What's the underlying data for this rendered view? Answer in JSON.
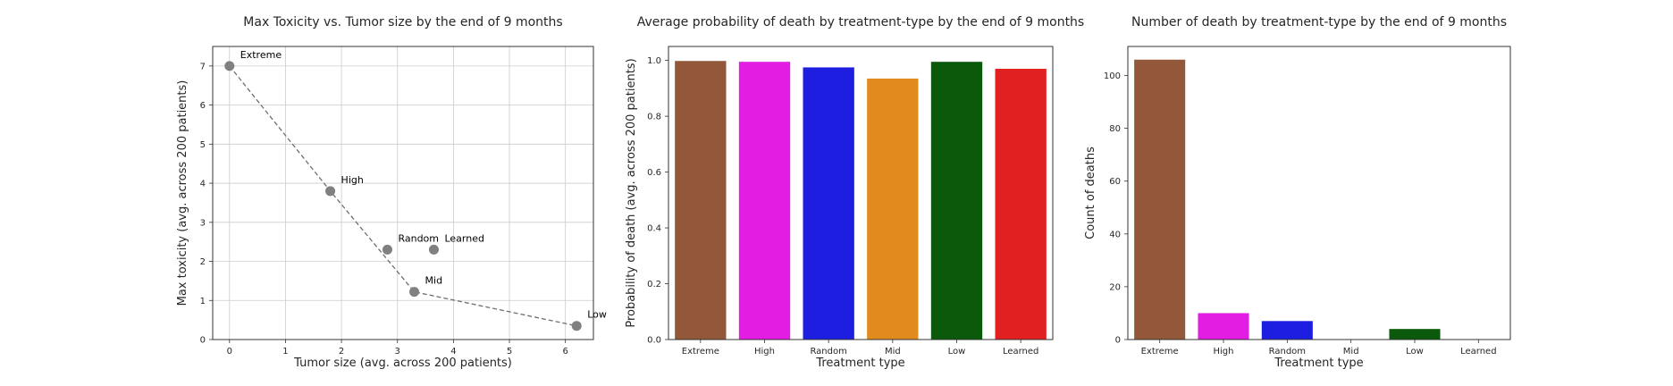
{
  "chart_data": [
    {
      "type": "scatter",
      "title": "Max Toxicity vs. Tumor size by the end of 9 months",
      "xlabel": "Tumor size (avg. across 200 patients)",
      "ylabel": "Max toxicity (avg. across 200 patients)",
      "xlim": [
        -0.3,
        6.5
      ],
      "ylim": [
        0,
        7.5
      ],
      "xticks": [
        "0",
        "1",
        "2",
        "3",
        "4",
        "5",
        "6"
      ],
      "yticks": [
        "0",
        "1",
        "2",
        "3",
        "4",
        "5",
        "6",
        "7"
      ],
      "grid": true,
      "point_color": "#808080",
      "line_style": "dashed",
      "points": [
        {
          "label": "Extreme",
          "x": 0.0,
          "y": 7.0
        },
        {
          "label": "High",
          "x": 1.8,
          "y": 3.8
        },
        {
          "label": "Random",
          "x": 2.82,
          "y": 2.3
        },
        {
          "label": "Learned",
          "x": 3.65,
          "y": 2.3
        },
        {
          "label": "Mid",
          "x": 3.3,
          "y": 1.22
        },
        {
          "label": "Low",
          "x": 6.2,
          "y": 0.35
        }
      ],
      "line_order": [
        "Extreme",
        "High",
        "Mid",
        "Low"
      ]
    },
    {
      "type": "bar",
      "title": "Average probability of death by treatment-type by the end of 9 months",
      "xlabel": "Treatment type",
      "ylabel": "Probability of death (avg. across 200 patients)",
      "ylim": [
        0,
        1.05
      ],
      "yticks": [
        "0.0",
        "0.2",
        "0.4",
        "0.6",
        "0.8",
        "1.0"
      ],
      "grid": false,
      "categories": [
        "Extreme",
        "High",
        "Random",
        "Mid",
        "Low",
        "Learned"
      ],
      "values": [
        0.998,
        0.995,
        0.975,
        0.935,
        0.995,
        0.97
      ],
      "colors": [
        "#93573a",
        "#e11ee1",
        "#1e1ee1",
        "#e18a1e",
        "#0b5a0b",
        "#e12020"
      ]
    },
    {
      "type": "bar",
      "title": "Number of death by treatment-type by the end of 9 months",
      "xlabel": "Treatment type",
      "ylabel": "Count of deaths",
      "ylim": [
        0,
        111
      ],
      "yticks": [
        "0",
        "20",
        "40",
        "60",
        "80",
        "100"
      ],
      "grid": false,
      "categories": [
        "Extreme",
        "High",
        "Random",
        "Mid",
        "Low",
        "Learned"
      ],
      "values": [
        106,
        10,
        7,
        0,
        4,
        0
      ],
      "colors": [
        "#93573a",
        "#e11ee1",
        "#1e1ee1",
        "#e18a1e",
        "#0b5a0b",
        "#e12020"
      ]
    }
  ]
}
